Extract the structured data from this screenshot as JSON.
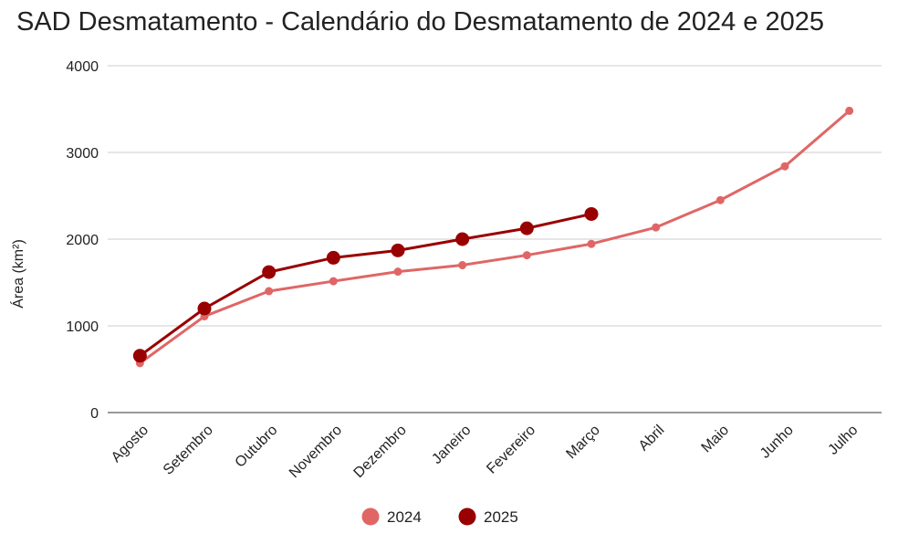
{
  "chart_data": {
    "type": "line",
    "title": "SAD Desmatamento - Calendário do Desmatamento de 2024 e 2025",
    "xlabel": "",
    "ylabel": "Área (km²)",
    "ylim": [
      0,
      4000
    ],
    "yticks": [
      0,
      1000,
      2000,
      3000,
      4000
    ],
    "grid": true,
    "legend_position": "bottom",
    "categories": [
      "Agosto",
      "Setembro",
      "Outubro",
      "Novembro",
      "Dezembro",
      "Janeiro",
      "Fevereiro",
      "Março",
      "Abril",
      "Maio",
      "Junho",
      "Julho"
    ],
    "series": [
      {
        "name": "2024",
        "color": "#e06666",
        "values": [
          570,
          1110,
          1400,
          1515,
          1625,
          1700,
          1815,
          1945,
          2135,
          2450,
          2840,
          3480
        ]
      },
      {
        "name": "2025",
        "color": "#990000",
        "values": [
          655,
          1200,
          1620,
          1785,
          1870,
          2000,
          2125,
          2290,
          null,
          null,
          null,
          null
        ]
      }
    ]
  }
}
